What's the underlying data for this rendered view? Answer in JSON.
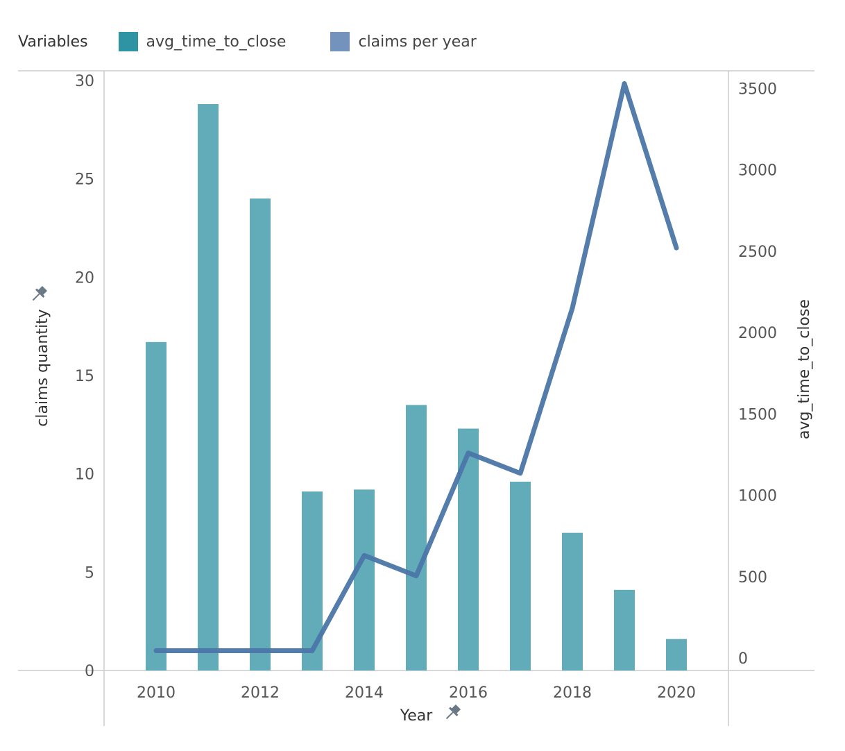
{
  "legend": {
    "title": "Variables",
    "items": [
      {
        "label": "avg_time_to_close",
        "color": "#2e94a3"
      },
      {
        "label": "claims per year",
        "color": "#7393bd"
      }
    ]
  },
  "chart_data": {
    "type": "bar",
    "x": [
      2010,
      2011,
      2012,
      2013,
      2014,
      2015,
      2016,
      2017,
      2018,
      2019,
      2020
    ],
    "xlabel": "Year",
    "x_ticks": [
      2010,
      2012,
      2014,
      2016,
      2018,
      2020
    ],
    "y_left": {
      "label": "claims quantity",
      "range": [
        0,
        30
      ],
      "ticks": [
        0,
        5,
        10,
        15,
        20,
        25,
        30
      ]
    },
    "y_right": {
      "label": "avg_time_to_close",
      "range": [
        0,
        3600
      ],
      "ticks": [
        0,
        500,
        1000,
        1500,
        2000,
        2500,
        3000,
        3500
      ]
    },
    "series": [
      {
        "kind": "bar",
        "axis": "left",
        "color": "#62acba",
        "values": [
          16.7,
          28.8,
          24.0,
          9.1,
          9.2,
          13.5,
          12.3,
          9.6,
          7.0,
          4.1,
          1.6
        ]
      },
      {
        "kind": "line",
        "axis": "right",
        "color": "#4b76a8",
        "values": [
          45,
          45,
          45,
          45,
          630,
          505,
          1260,
          1135,
          2150,
          3530,
          2520
        ]
      }
    ],
    "grid": false
  }
}
